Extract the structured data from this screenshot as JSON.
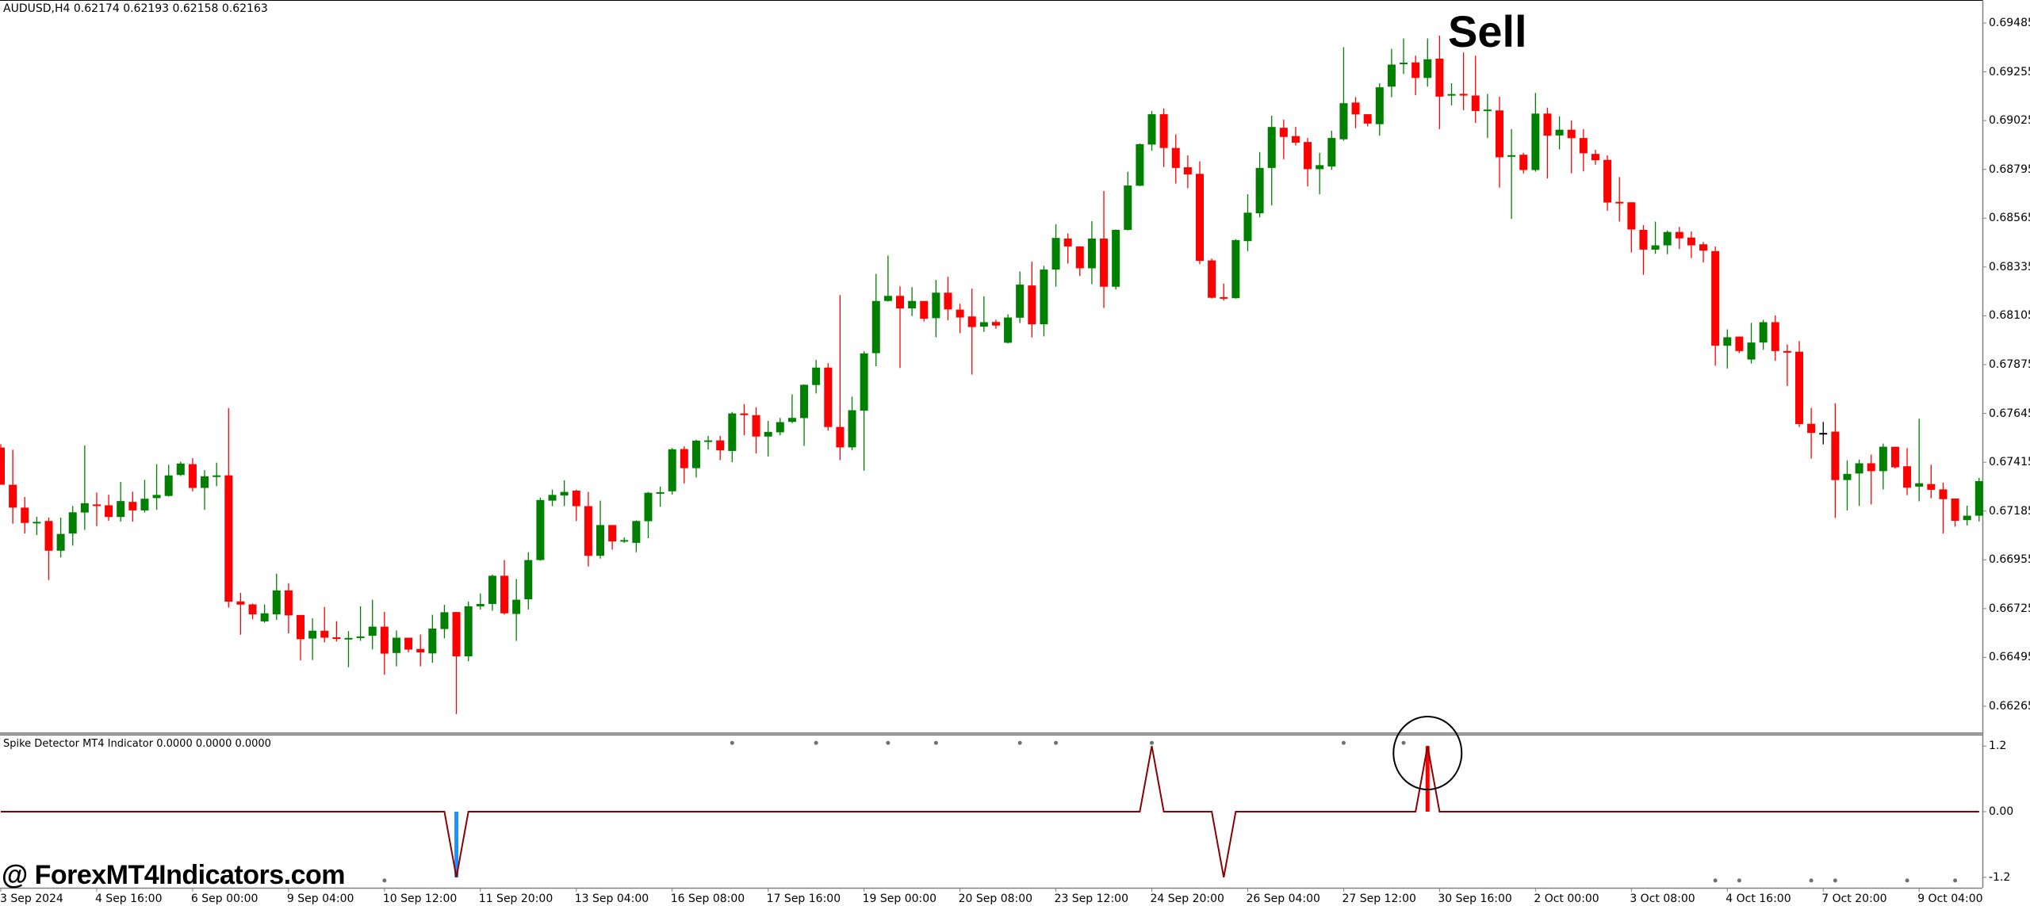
{
  "window": {
    "symbol_header": "AUDUSD,H4  0.62174 0.62193 0.62158 0.62163"
  },
  "annotations": {
    "signal_label": "Sell",
    "watermark": "@ ForexMT4Indicators.com"
  },
  "colors": {
    "bull": "#008000",
    "bear": "#FF0000",
    "doji": "#000000",
    "indicator_line": "#8B0000",
    "spike_up_histogram": "#FF0000",
    "spike_down_histogram": "#1E90FF",
    "dots": "#707070",
    "axis": "#808080"
  },
  "chart_data": [
    {
      "type": "candlestick",
      "symbol": "AUDUSD",
      "timeframe": "H4",
      "ylim": [
        0.6614,
        0.69535
      ],
      "price_axis_labels": [
        "0.69485",
        "0.69255",
        "0.69025",
        "0.68795",
        "0.68565",
        "0.68335",
        "0.68105",
        "0.67875",
        "0.67645",
        "0.67415",
        "0.67185",
        "0.66955",
        "0.66725",
        "0.66495",
        "0.66265"
      ],
      "time_axis_labels": [
        "3 Sep 2024",
        "4 Sep 16:00",
        "6 Sep 00:00",
        "9 Sep 04:00",
        "10 Sep 12:00",
        "11 Sep 20:00",
        "13 Sep 04:00",
        "16 Sep 08:00",
        "17 Sep 16:00",
        "19 Sep 00:00",
        "20 Sep 08:00",
        "23 Sep 12:00",
        "24 Sep 20:00",
        "26 Sep 04:00",
        "27 Sep 12:00",
        "30 Sep 16:00",
        "2 Oct 00:00",
        "3 Oct 08:00",
        "4 Oct 16:00",
        "7 Oct 20:00",
        "9 Oct 04:00"
      ],
      "bars_per_time_label": 8,
      "ohlc_fields": [
        "open",
        "high",
        "low",
        "close"
      ],
      "candles": [
        [
          0.67484,
          0.675,
          0.67309,
          0.67309
        ],
        [
          0.67309,
          0.67474,
          0.67125,
          0.67201
        ],
        [
          0.67201,
          0.67251,
          0.67079,
          0.67129
        ],
        [
          0.67129,
          0.67158,
          0.67072,
          0.67134
        ],
        [
          0.67138,
          0.67154,
          0.6686,
          0.66998
        ],
        [
          0.66998,
          0.67154,
          0.66966,
          0.67077
        ],
        [
          0.67079,
          0.67209,
          0.67022,
          0.67179
        ],
        [
          0.67178,
          0.67494,
          0.67096,
          0.67222
        ],
        [
          0.67216,
          0.67272,
          0.67114,
          0.67212
        ],
        [
          0.67212,
          0.67262,
          0.67139,
          0.67157
        ],
        [
          0.67157,
          0.67322,
          0.67135,
          0.67232
        ],
        [
          0.67228,
          0.67276,
          0.67135,
          0.67188
        ],
        [
          0.67188,
          0.67332,
          0.67178,
          0.67243
        ],
        [
          0.67246,
          0.67406,
          0.67191,
          0.67261
        ],
        [
          0.67256,
          0.67403,
          0.67253,
          0.67353
        ],
        [
          0.67355,
          0.67418,
          0.6735,
          0.67409
        ],
        [
          0.67406,
          0.67434,
          0.67278,
          0.67294
        ],
        [
          0.67294,
          0.67378,
          0.67191,
          0.67349
        ],
        [
          0.67349,
          0.67413,
          0.67302,
          0.67353
        ],
        [
          0.67353,
          0.6767,
          0.6673,
          0.66758
        ],
        [
          0.66759,
          0.66799,
          0.66602,
          0.66744
        ],
        [
          0.66745,
          0.66749,
          0.66675,
          0.66698
        ],
        [
          0.66665,
          0.66745,
          0.66659,
          0.66703
        ],
        [
          0.66698,
          0.6689,
          0.66672,
          0.66811
        ],
        [
          0.66811,
          0.66845,
          0.66608,
          0.66693
        ],
        [
          0.66695,
          0.66695,
          0.66481,
          0.66581
        ],
        [
          0.66584,
          0.66679,
          0.66483,
          0.66621
        ],
        [
          0.66621,
          0.66733,
          0.66566,
          0.66588
        ],
        [
          0.6659,
          0.66666,
          0.6657,
          0.66582
        ],
        [
          0.66582,
          0.66619,
          0.66449,
          0.66587
        ],
        [
          0.66588,
          0.66736,
          0.66573,
          0.66594
        ],
        [
          0.66597,
          0.66767,
          0.66533,
          0.6664
        ],
        [
          0.6664,
          0.6671,
          0.66414,
          0.66513
        ],
        [
          0.66516,
          0.66622,
          0.66453,
          0.66588
        ],
        [
          0.66588,
          0.66588,
          0.66519,
          0.66532
        ],
        [
          0.66535,
          0.66603,
          0.66453,
          0.66519
        ],
        [
          0.66514,
          0.66696,
          0.6647,
          0.66631
        ],
        [
          0.66629,
          0.66743,
          0.66585,
          0.66708
        ],
        [
          0.66709,
          0.66709,
          0.66228,
          0.665
        ],
        [
          0.665,
          0.66758,
          0.66477,
          0.66736
        ],
        [
          0.66736,
          0.66797,
          0.66721,
          0.66747
        ],
        [
          0.66747,
          0.66886,
          0.66715,
          0.6688
        ],
        [
          0.6688,
          0.66954,
          0.66697,
          0.66703
        ],
        [
          0.667,
          0.66865,
          0.66573,
          0.66767
        ],
        [
          0.66769,
          0.66991,
          0.66721,
          0.66954
        ],
        [
          0.66954,
          0.67249,
          0.66951,
          0.67237
        ],
        [
          0.67234,
          0.67286,
          0.67208,
          0.67261
        ],
        [
          0.67258,
          0.6733,
          0.67208,
          0.67275
        ],
        [
          0.67281,
          0.67286,
          0.67138,
          0.67208
        ],
        [
          0.67208,
          0.67275,
          0.66924,
          0.66974
        ],
        [
          0.66974,
          0.67234,
          0.66961,
          0.67119
        ],
        [
          0.67119,
          0.67119,
          0.67003,
          0.67042
        ],
        [
          0.67042,
          0.67061,
          0.67035,
          0.67048
        ],
        [
          0.67035,
          0.67141,
          0.66991,
          0.67138
        ],
        [
          0.67137,
          0.67275,
          0.67057,
          0.67271
        ],
        [
          0.6727,
          0.673,
          0.67205,
          0.67274
        ],
        [
          0.67278,
          0.67482,
          0.67263,
          0.67476
        ],
        [
          0.67477,
          0.6749,
          0.67315,
          0.67387
        ],
        [
          0.67387,
          0.67521,
          0.67343,
          0.67517
        ],
        [
          0.67514,
          0.67539,
          0.67475,
          0.67518
        ],
        [
          0.67518,
          0.67539,
          0.67425,
          0.67471
        ],
        [
          0.67468,
          0.67652,
          0.67415,
          0.67645
        ],
        [
          0.67645,
          0.67689,
          0.67542,
          0.67637
        ],
        [
          0.67637,
          0.67674,
          0.67456,
          0.67536
        ],
        [
          0.67536,
          0.6761,
          0.67442,
          0.67558
        ],
        [
          0.67556,
          0.67624,
          0.67542,
          0.67604
        ],
        [
          0.67605,
          0.67735,
          0.67599,
          0.67624
        ],
        [
          0.67623,
          0.67782,
          0.67492,
          0.6778
        ],
        [
          0.67779,
          0.67897,
          0.67739,
          0.67861
        ],
        [
          0.67861,
          0.67882,
          0.67564,
          0.67581
        ],
        [
          0.67581,
          0.68203,
          0.67425,
          0.67485
        ],
        [
          0.67485,
          0.67724,
          0.67471,
          0.6766
        ],
        [
          0.67658,
          0.67938,
          0.67375,
          0.67928
        ],
        [
          0.67929,
          0.68303,
          0.67867,
          0.68175
        ],
        [
          0.68175,
          0.68389,
          0.68172,
          0.68199
        ],
        [
          0.68199,
          0.68244,
          0.67859,
          0.6814
        ],
        [
          0.6814,
          0.6824,
          0.68104,
          0.68175
        ],
        [
          0.68175,
          0.68175,
          0.68079,
          0.68091
        ],
        [
          0.68094,
          0.68274,
          0.68004,
          0.68214
        ],
        [
          0.68214,
          0.68289,
          0.68084,
          0.68135
        ],
        [
          0.68134,
          0.68162,
          0.68023,
          0.68097
        ],
        [
          0.68102,
          0.68233,
          0.67828,
          0.68052
        ],
        [
          0.68054,
          0.68197,
          0.68029,
          0.68075
        ],
        [
          0.68076,
          0.68087,
          0.68044,
          0.68059
        ],
        [
          0.67978,
          0.68112,
          0.67975,
          0.68097
        ],
        [
          0.68096,
          0.68314,
          0.68071,
          0.68252
        ],
        [
          0.68248,
          0.6836,
          0.68003,
          0.68065
        ],
        [
          0.68065,
          0.68341,
          0.68008,
          0.68323
        ],
        [
          0.68323,
          0.68537,
          0.68242,
          0.68472
        ],
        [
          0.68469,
          0.68493,
          0.68351,
          0.68432
        ],
        [
          0.68432,
          0.68432,
          0.68292,
          0.68329
        ],
        [
          0.68329,
          0.68551,
          0.68254,
          0.68469
        ],
        [
          0.68469,
          0.68693,
          0.68142,
          0.68242
        ],
        [
          0.68242,
          0.68512,
          0.68229,
          0.6851
        ],
        [
          0.6851,
          0.68784,
          0.68507,
          0.68719
        ],
        [
          0.68718,
          0.68917,
          0.68716,
          0.68914
        ],
        [
          0.68912,
          0.6907,
          0.68883,
          0.69055
        ],
        [
          0.69055,
          0.69082,
          0.68806,
          0.68896
        ],
        [
          0.68896,
          0.6896,
          0.68728,
          0.68802
        ],
        [
          0.68805,
          0.68861,
          0.68706,
          0.68771
        ],
        [
          0.68774,
          0.68833,
          0.68348,
          0.68364
        ],
        [
          0.68366,
          0.68375,
          0.68186,
          0.6819
        ],
        [
          0.68193,
          0.68257,
          0.68177,
          0.68188
        ],
        [
          0.68188,
          0.68466,
          0.68186,
          0.68462
        ],
        [
          0.68457,
          0.68678,
          0.6841,
          0.68591
        ],
        [
          0.68588,
          0.68877,
          0.68569,
          0.68802
        ],
        [
          0.68802,
          0.69048,
          0.68625,
          0.68995
        ],
        [
          0.68991,
          0.69029,
          0.68843,
          0.68948
        ],
        [
          0.68952,
          0.68995,
          0.68908,
          0.68921
        ],
        [
          0.68924,
          0.68943,
          0.68715,
          0.68796
        ],
        [
          0.68796,
          0.68873,
          0.68678,
          0.68815
        ],
        [
          0.68809,
          0.68977,
          0.68793,
          0.68943
        ],
        [
          0.68937,
          0.69371,
          0.6893,
          0.69107
        ],
        [
          0.6911,
          0.69136,
          0.68989,
          0.69054
        ],
        [
          0.69055,
          0.69055,
          0.68998,
          0.69011
        ],
        [
          0.69008,
          0.69201,
          0.68954,
          0.69182
        ],
        [
          0.69185,
          0.69363,
          0.69135,
          0.69289
        ],
        [
          0.69293,
          0.69412,
          0.69244,
          0.69298
        ],
        [
          0.69299,
          0.69331,
          0.69145,
          0.69226
        ],
        [
          0.69226,
          0.69412,
          0.69185,
          0.69314
        ],
        [
          0.69317,
          0.69425,
          0.68985,
          0.69138
        ],
        [
          0.69145,
          0.69201,
          0.69097,
          0.6915
        ],
        [
          0.69151,
          0.69346,
          0.69074,
          0.69143
        ],
        [
          0.69143,
          0.69331,
          0.69014,
          0.6907
        ],
        [
          0.69073,
          0.69151,
          0.68943,
          0.69077
        ],
        [
          0.69073,
          0.69138,
          0.68709,
          0.68852
        ],
        [
          0.68856,
          0.68985,
          0.68562,
          0.68862
        ],
        [
          0.68864,
          0.68873,
          0.68776,
          0.68792
        ],
        [
          0.68792,
          0.69155,
          0.68784,
          0.69058
        ],
        [
          0.69058,
          0.69086,
          0.68752,
          0.68954
        ],
        [
          0.68955,
          0.69045,
          0.68889,
          0.68982
        ],
        [
          0.68982,
          0.69026,
          0.68777,
          0.68942
        ],
        [
          0.68943,
          0.68985,
          0.68786,
          0.68871
        ],
        [
          0.68868,
          0.68887,
          0.68817,
          0.68838
        ],
        [
          0.6884,
          0.68861,
          0.686,
          0.68639
        ],
        [
          0.68642,
          0.68759,
          0.68549,
          0.68637
        ],
        [
          0.6864,
          0.6864,
          0.68404,
          0.68512
        ],
        [
          0.6851,
          0.68532,
          0.68298,
          0.68417
        ],
        [
          0.68417,
          0.68549,
          0.68397,
          0.68437
        ],
        [
          0.68437,
          0.68507,
          0.68395,
          0.685
        ],
        [
          0.685,
          0.68524,
          0.6842,
          0.6847
        ],
        [
          0.68474,
          0.68503,
          0.68377,
          0.68437
        ],
        [
          0.68442,
          0.68453,
          0.68356,
          0.68412
        ],
        [
          0.6841,
          0.68431,
          0.6787,
          0.67964
        ],
        [
          0.67964,
          0.68041,
          0.67857,
          0.68004
        ],
        [
          0.68007,
          0.68007,
          0.67929,
          0.67939
        ],
        [
          0.67899,
          0.68072,
          0.6788,
          0.67979
        ],
        [
          0.67979,
          0.68086,
          0.67945,
          0.68075
        ],
        [
          0.68075,
          0.68107,
          0.67893,
          0.67939
        ],
        [
          0.67939,
          0.6797,
          0.67774,
          0.67932
        ],
        [
          0.67936,
          0.67986,
          0.67581,
          0.67595
        ],
        [
          0.67596,
          0.67671,
          0.67432,
          0.67553
        ],
        [
          0.67553,
          0.67605,
          0.67499,
          0.67553
        ],
        [
          0.67559,
          0.67693,
          0.67152,
          0.67331
        ],
        [
          0.67331,
          0.67424,
          0.67188,
          0.6736
        ],
        [
          0.67362,
          0.67428,
          0.67209,
          0.6741
        ],
        [
          0.6741,
          0.67451,
          0.67216,
          0.67373
        ],
        [
          0.67373,
          0.67503,
          0.67287,
          0.67488
        ],
        [
          0.67488,
          0.67488,
          0.67385,
          0.67391
        ],
        [
          0.67396,
          0.67482,
          0.6726,
          0.67295
        ],
        [
          0.673,
          0.6762,
          0.67231,
          0.67316
        ],
        [
          0.67312,
          0.67403,
          0.67245,
          0.67285
        ],
        [
          0.67287,
          0.67319,
          0.67079,
          0.67241
        ],
        [
          0.67244,
          0.67244,
          0.67111,
          0.67139
        ],
        [
          0.67142,
          0.6721,
          0.67117,
          0.67163
        ],
        [
          0.67163,
          0.67341,
          0.67136,
          0.67326
        ]
      ]
    },
    {
      "type": "line",
      "name": "Spike Detector MT4 Indicator",
      "header": "Spike Detector MT4 Indicator 0.0000 0.0000 0.0000",
      "ylim": [
        -1.2,
        1.2
      ],
      "axis_labels": [
        "1.2",
        "0.00",
        "-1.2"
      ],
      "axis_values": [
        1.2,
        0,
        -1.2
      ],
      "baseline": 0,
      "spikes": [
        {
          "bar": 38,
          "value": -1.2,
          "histogram": "down"
        },
        {
          "bar": 96,
          "value": 1.2
        },
        {
          "bar": 102,
          "value": -1.2
        },
        {
          "bar": 119,
          "value": 1.2,
          "histogram": "up",
          "highlighted": true
        }
      ],
      "upper_dots_bars": [
        61,
        68,
        74,
        78,
        85,
        88,
        96,
        112,
        117
      ],
      "lower_dots_bars": [
        32,
        143,
        145,
        151,
        153,
        159,
        163
      ],
      "dot_value": 1.2
    }
  ]
}
